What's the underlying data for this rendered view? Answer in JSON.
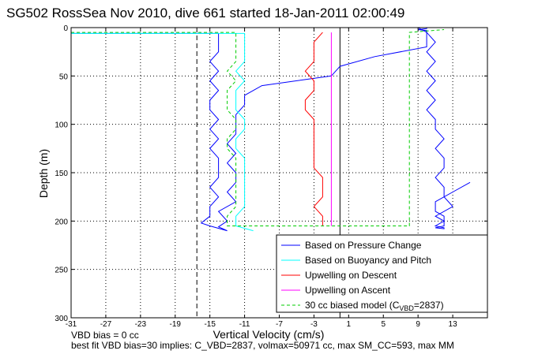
{
  "chart_data": {
    "type": "line",
    "title": "SG502 RossSea Nov 2010, dive 661 started 18-Jan-2011 02:00:49",
    "xlabel": "Vertical Velocity (cm/s)",
    "ylabel": "Depth (m)",
    "xlim": [
      -31,
      17
    ],
    "ylim": [
      300,
      0
    ],
    "y_reversed": true,
    "grid": true,
    "xticks": [
      -31,
      -27,
      -23,
      -19,
      -15,
      -11,
      -7,
      -3,
      1,
      5,
      9,
      13
    ],
    "yticks": [
      0,
      50,
      100,
      150,
      200,
      250,
      300
    ],
    "legend_position": "bottom-right",
    "reference_lines": {
      "dashed_x": -16.5,
      "solid_x": 0
    },
    "series": [
      {
        "name": "Based on Pressure Change",
        "color": "#0000ff",
        "x": [
          -31,
          -14,
          -14,
          -14,
          -15,
          -14,
          -15,
          -14,
          -15,
          -15,
          -14,
          -15,
          -14,
          -15,
          -14,
          -14,
          -14,
          -15,
          -14,
          -15,
          -15,
          -16,
          -15,
          -13,
          -14,
          -13,
          -14,
          -12,
          -13,
          -12,
          -12,
          -13,
          -12,
          -13,
          -12,
          -12,
          -12,
          -11,
          -11,
          -9,
          -1,
          0,
          4,
          10,
          10,
          10,
          10,
          10,
          9,
          10,
          10,
          9,
          10,
          11,
          10,
          11,
          10,
          11,
          10,
          11,
          10,
          11,
          11,
          12,
          11,
          12,
          12,
          11,
          12,
          12,
          13,
          11,
          12,
          12,
          11,
          12,
          12,
          11,
          12,
          12,
          11,
          11,
          13,
          15
        ],
        "y": [
          6,
          6,
          15,
          25,
          35,
          45,
          55,
          65,
          75,
          85,
          95,
          105,
          115,
          125,
          135,
          145,
          155,
          165,
          175,
          185,
          195,
          202,
          205,
          210,
          206,
          200,
          190,
          180,
          170,
          160,
          150,
          140,
          130,
          120,
          110,
          100,
          90,
          80,
          70,
          60,
          50,
          40,
          30,
          20,
          15,
          8,
          5,
          3,
          2,
          1,
          0,
          0,
          5,
          15,
          25,
          35,
          45,
          55,
          65,
          75,
          85,
          95,
          105,
          115,
          125,
          135,
          145,
          155,
          165,
          175,
          185,
          195,
          200,
          205,
          207,
          208,
          207,
          205,
          200,
          195,
          190,
          180,
          170,
          160
        ]
      },
      {
        "name": "Based on Buoyancy and Pitch",
        "color": "#00ffff",
        "x": [
          -31,
          -11,
          -11,
          -11,
          -11,
          -12,
          -11,
          -12,
          -12,
          -12,
          -11,
          -11,
          -12,
          -12,
          -11,
          -11,
          -11,
          -11,
          -11,
          -11,
          -12,
          -12,
          -12,
          -10
        ],
        "y": [
          6,
          6,
          15,
          25,
          35,
          45,
          55,
          65,
          75,
          85,
          95,
          105,
          115,
          125,
          135,
          145,
          155,
          165,
          175,
          185,
          195,
          200,
          205,
          210
        ]
      },
      {
        "name": "Upwelling on Descent",
        "color": "#ff0000",
        "x": [
          -2,
          -3,
          -3,
          -3,
          -4,
          -3,
          -3,
          -4,
          -4,
          -3,
          -3,
          -3,
          -3,
          -3,
          -3,
          -2,
          -2,
          -2,
          -3,
          -2,
          -2
        ],
        "y": [
          5,
          15,
          25,
          35,
          45,
          55,
          65,
          75,
          85,
          95,
          105,
          115,
          125,
          135,
          145,
          155,
          165,
          175,
          185,
          195,
          205
        ]
      },
      {
        "name": "Upwelling on Ascent",
        "color": "#ff00ff",
        "x": [
          -1,
          -1,
          -1,
          -1,
          -1,
          -1,
          -1,
          -1,
          -1,
          -1,
          -1,
          -1,
          -1,
          -1,
          -1,
          -1,
          -1,
          -1,
          -1,
          -1,
          -1
        ],
        "y": [
          5,
          15,
          25,
          35,
          45,
          55,
          65,
          75,
          85,
          95,
          105,
          115,
          125,
          135,
          145,
          155,
          165,
          175,
          185,
          195,
          205
        ]
      },
      {
        "name": "30 cc biased model (C_VBD=2837)",
        "color": "#00cc00",
        "x": [
          -31,
          -12,
          -12,
          -12,
          -12,
          -13,
          -12,
          -13,
          -13,
          -13,
          -12,
          -12,
          -13,
          -13,
          -12,
          -12,
          -12,
          -12,
          -12,
          -12,
          -13,
          -13,
          8,
          8,
          8,
          8,
          8,
          8,
          8,
          8,
          8,
          8,
          8,
          8,
          8,
          8,
          8,
          8,
          8,
          8,
          8,
          8,
          8,
          12
        ],
        "y": [
          5,
          5,
          15,
          25,
          35,
          45,
          55,
          65,
          75,
          85,
          95,
          105,
          115,
          125,
          135,
          145,
          155,
          165,
          175,
          185,
          195,
          205,
          205,
          195,
          185,
          175,
          165,
          155,
          145,
          135,
          125,
          115,
          105,
          95,
          85,
          75,
          65,
          55,
          45,
          35,
          25,
          15,
          5,
          2
        ]
      }
    ]
  },
  "legend": [
    {
      "label": "Based on Pressure Change",
      "color": "#0000ff",
      "dashed": false
    },
    {
      "label": "Based on Buoyancy and Pitch",
      "color": "#00ffff",
      "dashed": false
    },
    {
      "label": "Upwelling on Descent",
      "color": "#ff0000",
      "dashed": false
    },
    {
      "label": "Upwelling on Ascent",
      "color": "#ff00ff",
      "dashed": false
    },
    {
      "label": "30 cc biased model (C",
      "sub": "VBD",
      "tail": "=2837)",
      "color": "#00cc00",
      "dashed": true
    }
  ],
  "footer": {
    "line1": "VBD bias = 0 cc",
    "line2": "best fit VBD bias=30 implies: C_VBD=2837, volmax=50971 cc, max SM_CC=593, max MM"
  }
}
